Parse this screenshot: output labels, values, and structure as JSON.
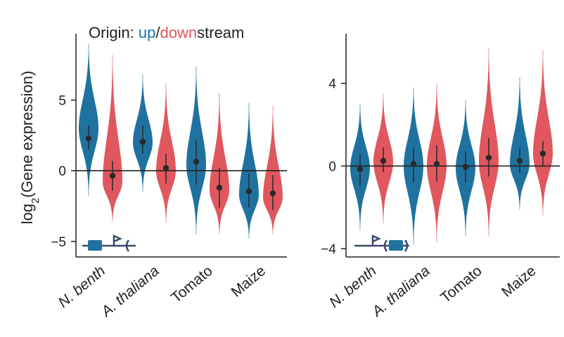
{
  "colors": {
    "upstream": "#1f72a0",
    "downstream": "#e0575d",
    "axis": "#222222",
    "marker": "#2a2a2a",
    "schematic": "#3a4a6a"
  },
  "legend": {
    "prefix": "Origin: ",
    "up": "up",
    "slash": "/",
    "down": "down",
    "suffix": "stream"
  },
  "chart_data": [
    {
      "type": "violin",
      "xlabel": "",
      "ylabel": "log",
      "ylabel_sub": "2",
      "ylabel_rest": "(Gene expression)",
      "ylim": [
        -6.1,
        9.7
      ],
      "yticks": [
        5,
        0,
        -5
      ],
      "ytick_labels": [
        "5",
        "0",
        "−5"
      ],
      "reference_line": 0,
      "categories": [
        "N. benth",
        "A. thaliana",
        "Tomato",
        "Maize"
      ],
      "categories_italic": [
        true,
        true,
        false,
        false
      ],
      "series": [
        {
          "name": "up",
          "medians": [
            2.3,
            2.05,
            0.65,
            -1.45
          ],
          "q1": [
            1.5,
            1.2,
            -1.0,
            -2.6
          ],
          "q3": [
            3.2,
            3.2,
            2.2,
            -0.2
          ],
          "min": [
            -1.8,
            -1.5,
            -4.5,
            -4.8
          ],
          "max": [
            9.0,
            6.8,
            7.4,
            4.8
          ],
          "peak": [
            3.0,
            2.0,
            0.4,
            -1.7
          ]
        },
        {
          "name": "down",
          "medians": [
            -0.35,
            0.2,
            -1.2,
            -1.6
          ],
          "q1": [
            -1.4,
            -0.9,
            -2.6,
            -2.8
          ],
          "q3": [
            0.7,
            1.2,
            0.2,
            -0.3
          ],
          "min": [
            -3.6,
            -3.7,
            -4.5,
            -4.5
          ],
          "max": [
            8.2,
            6.2,
            5.5,
            4.6
          ],
          "peak": [
            -0.8,
            0.0,
            -1.4,
            -1.9
          ]
        }
      ]
    },
    {
      "type": "violin",
      "xlabel": "",
      "ylabel": "",
      "ylim": [
        -4.4,
        6.4
      ],
      "yticks": [
        4,
        0,
        -4
      ],
      "ytick_labels": [
        "4",
        "0",
        "−4"
      ],
      "reference_line": 0,
      "categories": [
        "N. benth",
        "A. thaliana",
        "Tomato",
        "Maize"
      ],
      "categories_italic": [
        true,
        true,
        false,
        false
      ],
      "series": [
        {
          "name": "up",
          "medians": [
            -0.15,
            0.1,
            -0.05,
            0.25
          ],
          "q1": [
            -1.0,
            -0.8,
            -0.8,
            -0.35
          ],
          "q3": [
            0.6,
            0.9,
            0.7,
            0.85
          ],
          "min": [
            -3.1,
            -3.8,
            -3.4,
            -2.1
          ],
          "max": [
            3.0,
            3.8,
            3.2,
            4.3
          ],
          "peak": [
            -0.1,
            0.0,
            -0.1,
            0.1
          ]
        },
        {
          "name": "down",
          "medians": [
            0.25,
            0.1,
            0.4,
            0.6
          ],
          "q1": [
            -0.3,
            -0.75,
            -0.5,
            0.0
          ],
          "q3": [
            0.9,
            1.0,
            1.35,
            1.2
          ],
          "min": [
            -2.8,
            -3.7,
            -3.4,
            -2.4
          ],
          "max": [
            3.5,
            4.0,
            5.7,
            5.6
          ],
          "peak": [
            0.2,
            0.0,
            0.2,
            0.6
          ]
        }
      ]
    }
  ]
}
